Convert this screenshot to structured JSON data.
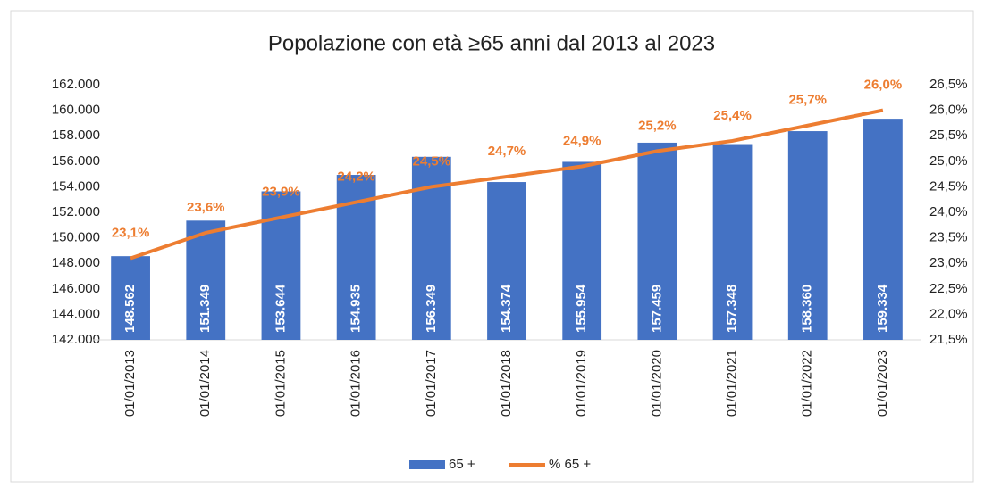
{
  "chart_data": {
    "type": "combo",
    "title": "Popolazione con età ≥65 anni dal 2013 al 2023",
    "categories": [
      "01/01/2013",
      "01/01/2014",
      "01/01/2015",
      "01/01/2016",
      "01/01/2017",
      "01/01/2018",
      "01/01/2019",
      "01/01/2020",
      "01/01/2021",
      "01/01/2022",
      "01/01/2023"
    ],
    "series": [
      {
        "name": "65 +",
        "type": "bar",
        "color": "#4472c4",
        "values": [
          148562,
          151349,
          153644,
          154935,
          156349,
          154374,
          155954,
          157459,
          157348,
          158360,
          159334
        ],
        "value_labels": [
          "148.562",
          "151.349",
          "153.644",
          "154.935",
          "156.349",
          "154.374",
          "155.954",
          "157.459",
          "157.348",
          "158.360",
          "159.334"
        ]
      },
      {
        "name": "% 65 +",
        "type": "line",
        "axis": "y2",
        "color": "#ed7d31",
        "values": [
          23.1,
          23.6,
          23.9,
          24.2,
          24.5,
          24.7,
          24.9,
          25.2,
          25.4,
          25.7,
          26.0
        ],
        "value_labels": [
          "23,1%",
          "23,6%",
          "23,9%",
          "24,2%",
          "24,5%",
          "24,7%",
          "24,9%",
          "25,2%",
          "25,4%",
          "25,7%",
          "26,0%"
        ]
      }
    ],
    "ylim": [
      142000,
      162000
    ],
    "yticks": [
      {
        "value": 142000,
        "label": "142.000"
      },
      {
        "value": 144000,
        "label": "144.000"
      },
      {
        "value": 146000,
        "label": "146.000"
      },
      {
        "value": 148000,
        "label": "148.000"
      },
      {
        "value": 150000,
        "label": "150.000"
      },
      {
        "value": 152000,
        "label": "152.000"
      },
      {
        "value": 154000,
        "label": "154.000"
      },
      {
        "value": 156000,
        "label": "156.000"
      },
      {
        "value": 158000,
        "label": "158.000"
      },
      {
        "value": 160000,
        "label": "160.000"
      },
      {
        "value": 162000,
        "label": "162.000"
      }
    ],
    "y2lim": [
      21.5,
      26.5
    ],
    "y2ticks": [
      {
        "value": 21.5,
        "label": "21,5%"
      },
      {
        "value": 22,
        "label": "22,0%"
      },
      {
        "value": 22.5,
        "label": "22,5%"
      },
      {
        "value": 23,
        "label": "23,0%"
      },
      {
        "value": 23.5,
        "label": "23,5%"
      },
      {
        "value": 24,
        "label": "24,0%"
      },
      {
        "value": 24.5,
        "label": "24,5%"
      },
      {
        "value": 25,
        "label": "25,0%"
      },
      {
        "value": 25.5,
        "label": "25,5%"
      },
      {
        "value": 26,
        "label": "26,0%"
      },
      {
        "value": 26.5,
        "label": "26,5%"
      }
    ],
    "grid": false,
    "legend": "bottom"
  }
}
